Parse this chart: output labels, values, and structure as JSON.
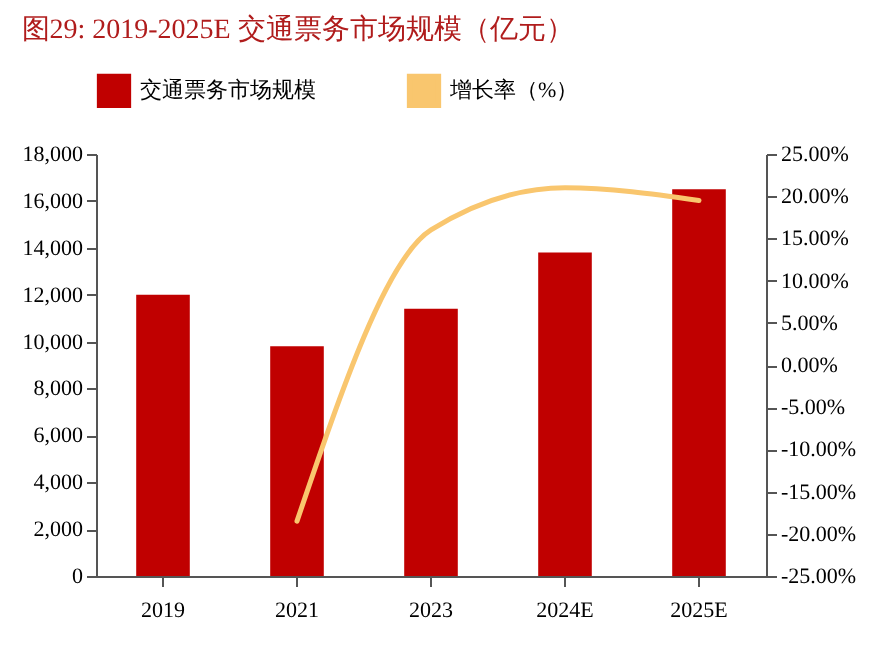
{
  "chart_data": {
    "type": "bar",
    "title": "图29:   2019-2025E 交通票务市场规模（亿元）",
    "categories": [
      "2019",
      "2021",
      "2023",
      "2024E",
      "2025E"
    ],
    "series": [
      {
        "name": "交通票务市场规模",
        "color": "#c00000",
        "values": [
          12000,
          9800,
          11400,
          13800,
          16500
        ]
      },
      {
        "name": "增长率（%）",
        "type": "line",
        "axis": "y2",
        "color": "#f9c66e",
        "values": [
          null,
          -18.5,
          16,
          21,
          19.5
        ]
      }
    ],
    "ylim": [
      0,
      18000
    ],
    "yticks": [
      {
        "value": 0,
        "label": "0"
      },
      {
        "value": 2000,
        "label": "2,000"
      },
      {
        "value": 4000,
        "label": "4,000"
      },
      {
        "value": 6000,
        "label": "6,000"
      },
      {
        "value": 8000,
        "label": "8,000"
      },
      {
        "value": 10000,
        "label": "10,000"
      },
      {
        "value": 12000,
        "label": "12,000"
      },
      {
        "value": 14000,
        "label": "14,000"
      },
      {
        "value": 16000,
        "label": "16,000"
      },
      {
        "value": 18000,
        "label": "18,000"
      }
    ],
    "y2lim": [
      -25,
      25
    ],
    "y2ticks": [
      {
        "value": -25,
        "label": "-25.00%"
      },
      {
        "value": -20,
        "label": "-20.00%"
      },
      {
        "value": -15,
        "label": "-15.00%"
      },
      {
        "value": -10,
        "label": "-10.00%"
      },
      {
        "value": -5,
        "label": "-5.00%"
      },
      {
        "value": 0,
        "label": "0.00%"
      },
      {
        "value": 5,
        "label": "5.00%"
      },
      {
        "value": 10,
        "label": "10.00%"
      },
      {
        "value": 15,
        "label": "15.00%"
      },
      {
        "value": 20,
        "label": "20.00%"
      },
      {
        "value": 25,
        "label": "25.00%"
      }
    ],
    "legend": "top",
    "grid": false
  }
}
